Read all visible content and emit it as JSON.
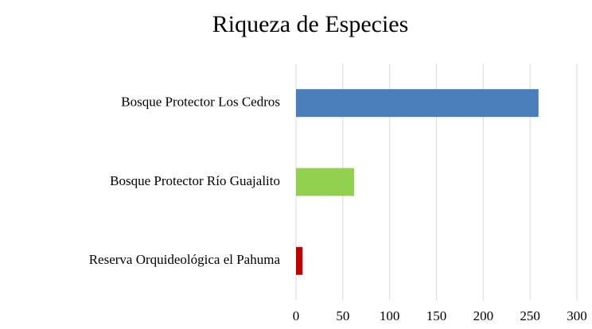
{
  "chart_data": {
    "type": "barh",
    "title": "Riqueza de Especies",
    "categories": [
      "Bosque Protector Los Cedros",
      "Bosque Protector Río Guajalito",
      "Reserva Orquideológica el Pahuma"
    ],
    "values": [
      259,
      62,
      7
    ],
    "colors": [
      "#4a7ebb",
      "#92d050",
      "#c00000"
    ],
    "xlim": [
      0,
      300
    ],
    "xticks": [
      0,
      50,
      100,
      150,
      200,
      250,
      300
    ],
    "grid": true
  }
}
